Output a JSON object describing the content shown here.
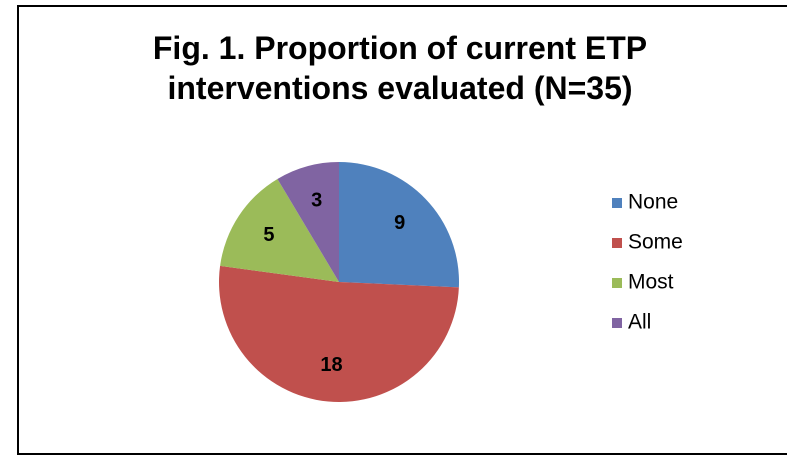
{
  "chart_data": {
    "type": "pie",
    "title": "Fig. 1. Proportion of current ETP interventions evaluated (N=35)",
    "categories": [
      "None",
      "Some",
      "Most",
      "All"
    ],
    "values": [
      9,
      18,
      5,
      3
    ],
    "colors": [
      "#4f81bd",
      "#c0504d",
      "#9bbb59",
      "#8064a2"
    ],
    "legend": "right"
  }
}
